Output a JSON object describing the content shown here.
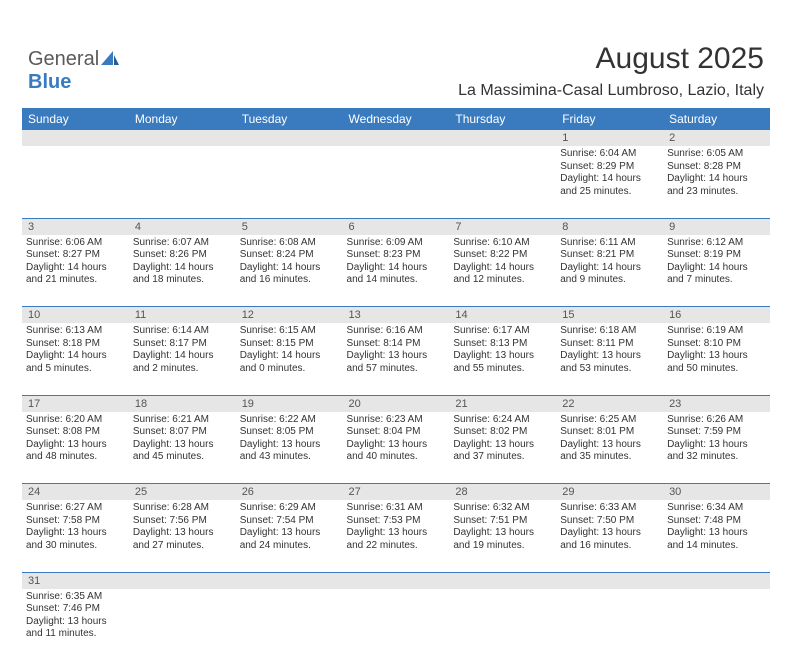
{
  "logo": {
    "text_a": "General",
    "text_b": "Blue"
  },
  "title": "August 2025",
  "subtitle": "La Massimina-Casal Lumbroso, Lazio, Italy",
  "colors": {
    "header_bg": "#3a7bbf",
    "header_text": "#ffffff",
    "daynum_bg": "#e6e6e6",
    "border": "#3a7bbf",
    "text": "#333333"
  },
  "weekdays": [
    "Sunday",
    "Monday",
    "Tuesday",
    "Wednesday",
    "Thursday",
    "Friday",
    "Saturday"
  ],
  "weeks": [
    [
      null,
      null,
      null,
      null,
      null,
      {
        "n": "1",
        "sr": "6:04 AM",
        "ss": "8:29 PM",
        "dl": "14 hours and 25 minutes."
      },
      {
        "n": "2",
        "sr": "6:05 AM",
        "ss": "8:28 PM",
        "dl": "14 hours and 23 minutes."
      }
    ],
    [
      {
        "n": "3",
        "sr": "6:06 AM",
        "ss": "8:27 PM",
        "dl": "14 hours and 21 minutes."
      },
      {
        "n": "4",
        "sr": "6:07 AM",
        "ss": "8:26 PM",
        "dl": "14 hours and 18 minutes."
      },
      {
        "n": "5",
        "sr": "6:08 AM",
        "ss": "8:24 PM",
        "dl": "14 hours and 16 minutes."
      },
      {
        "n": "6",
        "sr": "6:09 AM",
        "ss": "8:23 PM",
        "dl": "14 hours and 14 minutes."
      },
      {
        "n": "7",
        "sr": "6:10 AM",
        "ss": "8:22 PM",
        "dl": "14 hours and 12 minutes."
      },
      {
        "n": "8",
        "sr": "6:11 AM",
        "ss": "8:21 PM",
        "dl": "14 hours and 9 minutes."
      },
      {
        "n": "9",
        "sr": "6:12 AM",
        "ss": "8:19 PM",
        "dl": "14 hours and 7 minutes."
      }
    ],
    [
      {
        "n": "10",
        "sr": "6:13 AM",
        "ss": "8:18 PM",
        "dl": "14 hours and 5 minutes."
      },
      {
        "n": "11",
        "sr": "6:14 AM",
        "ss": "8:17 PM",
        "dl": "14 hours and 2 minutes."
      },
      {
        "n": "12",
        "sr": "6:15 AM",
        "ss": "8:15 PM",
        "dl": "14 hours and 0 minutes."
      },
      {
        "n": "13",
        "sr": "6:16 AM",
        "ss": "8:14 PM",
        "dl": "13 hours and 57 minutes."
      },
      {
        "n": "14",
        "sr": "6:17 AM",
        "ss": "8:13 PM",
        "dl": "13 hours and 55 minutes."
      },
      {
        "n": "15",
        "sr": "6:18 AM",
        "ss": "8:11 PM",
        "dl": "13 hours and 53 minutes."
      },
      {
        "n": "16",
        "sr": "6:19 AM",
        "ss": "8:10 PM",
        "dl": "13 hours and 50 minutes."
      }
    ],
    [
      {
        "n": "17",
        "sr": "6:20 AM",
        "ss": "8:08 PM",
        "dl": "13 hours and 48 minutes."
      },
      {
        "n": "18",
        "sr": "6:21 AM",
        "ss": "8:07 PM",
        "dl": "13 hours and 45 minutes."
      },
      {
        "n": "19",
        "sr": "6:22 AM",
        "ss": "8:05 PM",
        "dl": "13 hours and 43 minutes."
      },
      {
        "n": "20",
        "sr": "6:23 AM",
        "ss": "8:04 PM",
        "dl": "13 hours and 40 minutes."
      },
      {
        "n": "21",
        "sr": "6:24 AM",
        "ss": "8:02 PM",
        "dl": "13 hours and 37 minutes."
      },
      {
        "n": "22",
        "sr": "6:25 AM",
        "ss": "8:01 PM",
        "dl": "13 hours and 35 minutes."
      },
      {
        "n": "23",
        "sr": "6:26 AM",
        "ss": "7:59 PM",
        "dl": "13 hours and 32 minutes."
      }
    ],
    [
      {
        "n": "24",
        "sr": "6:27 AM",
        "ss": "7:58 PM",
        "dl": "13 hours and 30 minutes."
      },
      {
        "n": "25",
        "sr": "6:28 AM",
        "ss": "7:56 PM",
        "dl": "13 hours and 27 minutes."
      },
      {
        "n": "26",
        "sr": "6:29 AM",
        "ss": "7:54 PM",
        "dl": "13 hours and 24 minutes."
      },
      {
        "n": "27",
        "sr": "6:31 AM",
        "ss": "7:53 PM",
        "dl": "13 hours and 22 minutes."
      },
      {
        "n": "28",
        "sr": "6:32 AM",
        "ss": "7:51 PM",
        "dl": "13 hours and 19 minutes."
      },
      {
        "n": "29",
        "sr": "6:33 AM",
        "ss": "7:50 PM",
        "dl": "13 hours and 16 minutes."
      },
      {
        "n": "30",
        "sr": "6:34 AM",
        "ss": "7:48 PM",
        "dl": "13 hours and 14 minutes."
      }
    ],
    [
      {
        "n": "31",
        "sr": "6:35 AM",
        "ss": "7:46 PM",
        "dl": "13 hours and 11 minutes."
      },
      null,
      null,
      null,
      null,
      null,
      null
    ]
  ],
  "labels": {
    "sunrise": "Sunrise:",
    "sunset": "Sunset:",
    "daylight": "Daylight:"
  }
}
